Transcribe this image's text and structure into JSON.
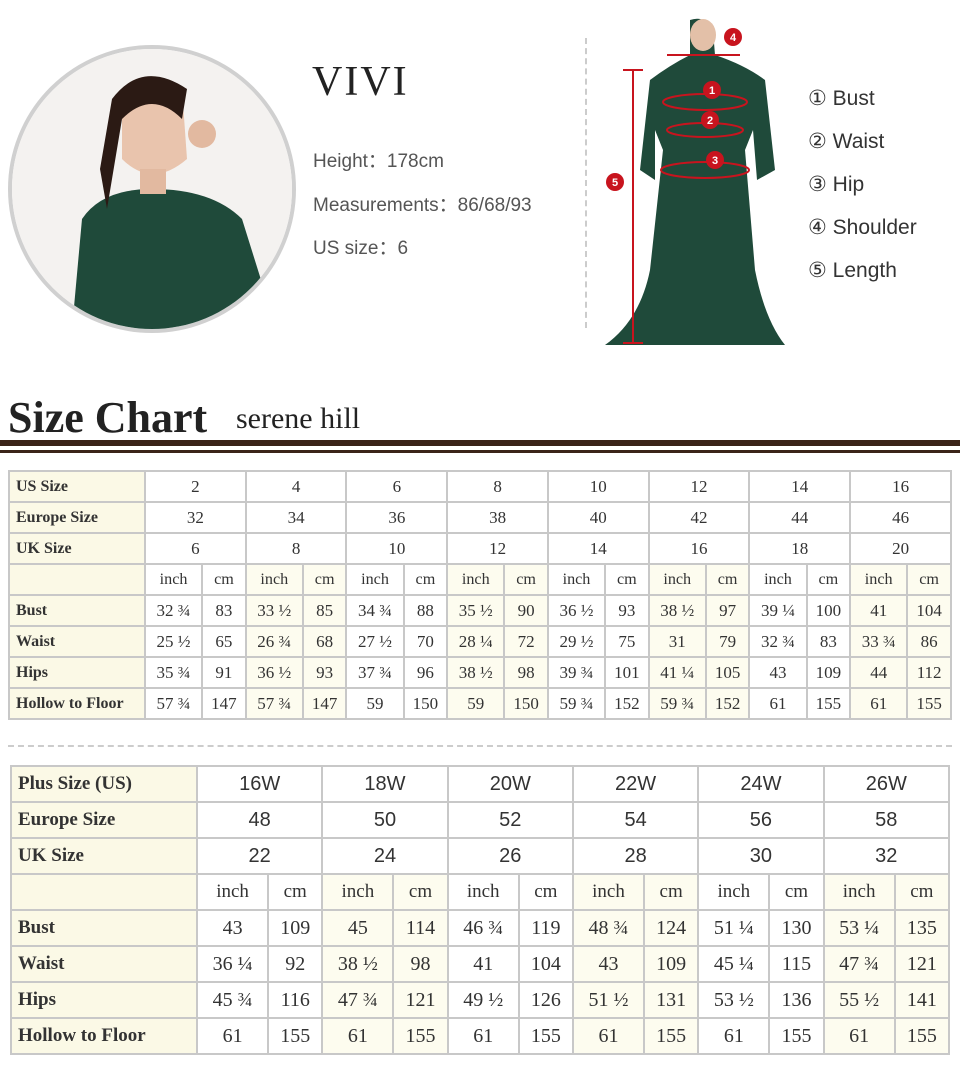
{
  "model": {
    "name": "VIVI",
    "height": "Height：178cm",
    "measurements": "Measurements：86/68/93",
    "us_size": "US size：6"
  },
  "legend": [
    "① Bust",
    "② Waist",
    "③ Hip",
    "④ Shoulder",
    "⑤ Length"
  ],
  "diagram_markers": [
    "1",
    "2",
    "3",
    "4",
    "5"
  ],
  "header": {
    "title": "Size Chart",
    "subtitle": "serene hill"
  },
  "colors": {
    "dress": "#1f4a3a",
    "marker": "#c8141e",
    "rule": "#3b2418"
  },
  "table1": {
    "size_rows": [
      {
        "label": "US Size",
        "values": [
          "2",
          "4",
          "6",
          "8",
          "10",
          "12",
          "14",
          "16"
        ]
      },
      {
        "label": "Europe Size",
        "values": [
          "32",
          "34",
          "36",
          "38",
          "40",
          "42",
          "44",
          "46"
        ]
      },
      {
        "label": "UK Size",
        "values": [
          "6",
          "8",
          "10",
          "12",
          "14",
          "16",
          "18",
          "20"
        ]
      }
    ],
    "unit_labels": [
      "inch",
      "cm"
    ],
    "measure_rows": [
      {
        "label": "Bust",
        "values": [
          "32 ¾",
          "83",
          "33 ½",
          "85",
          "34 ¾",
          "88",
          "35 ½",
          "90",
          "36 ½",
          "93",
          "38 ½",
          "97",
          "39 ¼",
          "100",
          "41",
          "104"
        ]
      },
      {
        "label": "Waist",
        "values": [
          "25 ½",
          "65",
          "26 ¾",
          "68",
          "27 ½",
          "70",
          "28 ¼",
          "72",
          "29 ½",
          "75",
          "31",
          "79",
          "32 ¾",
          "83",
          "33 ¾",
          "86"
        ]
      },
      {
        "label": "Hips",
        "values": [
          "35 ¾",
          "91",
          "36 ½",
          "93",
          "37 ¾",
          "96",
          "38 ½",
          "98",
          "39 ¾",
          "101",
          "41 ¼",
          "105",
          "43",
          "109",
          "44",
          "112"
        ]
      },
      {
        "label": "Hollow to Floor",
        "values": [
          "57 ¾",
          "147",
          "57 ¾",
          "147",
          "59",
          "150",
          "59",
          "150",
          "59 ¾",
          "152",
          "59 ¾",
          "152",
          "61",
          "155",
          "61",
          "155"
        ]
      }
    ]
  },
  "table2": {
    "size_rows": [
      {
        "label": "Plus Size (US)",
        "values": [
          "16W",
          "18W",
          "20W",
          "22W",
          "24W",
          "26W"
        ]
      },
      {
        "label": "Europe Size",
        "values": [
          "48",
          "50",
          "52",
          "54",
          "56",
          "58"
        ]
      },
      {
        "label": "UK Size",
        "values": [
          "22",
          "24",
          "26",
          "28",
          "30",
          "32"
        ]
      }
    ],
    "unit_labels": [
      "inch",
      "cm"
    ],
    "measure_rows": [
      {
        "label": "Bust",
        "values": [
          "43",
          "109",
          "45",
          "114",
          "46 ¾",
          "119",
          "48 ¾",
          "124",
          "51 ¼",
          "130",
          "53 ¼",
          "135"
        ]
      },
      {
        "label": "Waist",
        "values": [
          "36 ¼",
          "92",
          "38 ½",
          "98",
          "41",
          "104",
          "43",
          "109",
          "45 ¼",
          "115",
          "47 ¾",
          "121"
        ]
      },
      {
        "label": "Hips",
        "values": [
          "45 ¾",
          "116",
          "47 ¾",
          "121",
          "49 ½",
          "126",
          "51 ½",
          "131",
          "53 ½",
          "136",
          "55 ½",
          "141"
        ]
      },
      {
        "label": "Hollow to Floor",
        "values": [
          "61",
          "155",
          "61",
          "155",
          "61",
          "155",
          "61",
          "155",
          "61",
          "155",
          "61",
          "155"
        ]
      }
    ]
  }
}
